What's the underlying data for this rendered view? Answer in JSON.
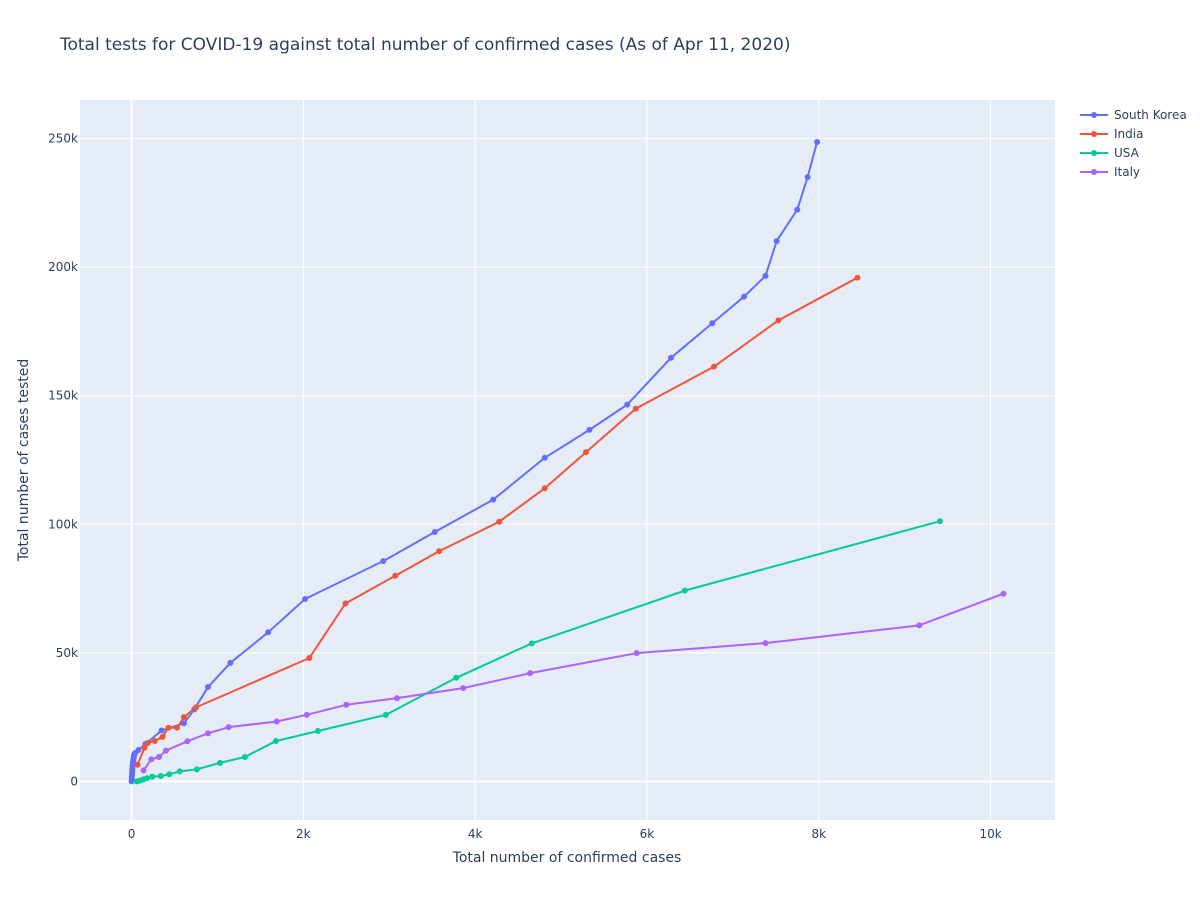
{
  "chart_data": {
    "type": "line",
    "title": "Total tests for COVID-19 against total number of confirmed cases (As of Apr 11, 2020)",
    "xlabel": "Total number of confirmed cases",
    "ylabel": "Total number of cases tested",
    "xlim": [
      -600,
      10750
    ],
    "ylim": [
      -15000,
      265000
    ],
    "x_ticks": [
      0,
      2000,
      4000,
      6000,
      8000,
      10000
    ],
    "x_tick_labels": [
      "0",
      "2k",
      "4k",
      "6k",
      "8k",
      "10k"
    ],
    "y_ticks": [
      0,
      50000,
      100000,
      150000,
      200000,
      250000
    ],
    "y_tick_labels": [
      "0",
      "50k",
      "100k",
      "150k",
      "200k",
      "250k"
    ],
    "grid": true,
    "legend_position": "top-right, outside plot",
    "background_color": "#e5ecf6",
    "series": [
      {
        "name": "South Korea",
        "color": "#636efa",
        "x": [
          0,
          2,
          4,
          6,
          8,
          10,
          12,
          14,
          16,
          18,
          20,
          22,
          24,
          26,
          28,
          30,
          32,
          34,
          40,
          80,
          160,
          350,
          610,
          730,
          890,
          1150,
          1590,
          2020,
          2930,
          3530,
          4210,
          4810,
          5330,
          5770,
          6280,
          6760,
          7130,
          7380,
          7510,
          7750,
          7870,
          7980
        ],
        "y": [
          0,
          1000,
          2000,
          3000,
          4000,
          5000,
          6000,
          6500,
          7000,
          7500,
          8000,
          8500,
          9000,
          9500,
          10000,
          10200,
          10500,
          10700,
          11000,
          12200,
          14500,
          19800,
          22600,
          28000,
          36700,
          46100,
          57990,
          70940,
          85690,
          96980,
          109590,
          125850,
          136710,
          146540,
          164740,
          178190,
          188520,
          196620,
          210140,
          222390,
          234990,
          248650
        ]
      },
      {
        "name": "India",
        "color": "#ef553b",
        "x": [
          70,
          150,
          190,
          270,
          360,
          430,
          530,
          610,
          750,
          2070,
          2490,
          3070,
          3580,
          4280,
          4810,
          5290,
          5870,
          6780,
          7530,
          8450
        ],
        "y": [
          6500,
          13100,
          15000,
          15700,
          17300,
          20900,
          20900,
          25000,
          28800,
          48000,
          69200,
          80000,
          89500,
          101000,
          114000,
          128000,
          145000,
          161300,
          179300,
          195900
        ]
      },
      {
        "name": "USA",
        "color": "#00cc96",
        "x": [
          60,
          100,
          140,
          180,
          240,
          340,
          440,
          560,
          760,
          1030,
          1320,
          1680,
          2170,
          2960,
          3780,
          4660,
          6440,
          9410
        ],
        "y": [
          0,
          300,
          800,
          1300,
          1800,
          2100,
          2800,
          3900,
          4700,
          7200,
          9500,
          15700,
          19600,
          25900,
          40300,
          53700,
          74200,
          101200
        ]
      },
      {
        "name": "Italy",
        "color": "#ab63fa",
        "x": [
          140,
          230,
          320,
          400,
          650,
          890,
          1130,
          1690,
          2040,
          2500,
          3090,
          3860,
          4640,
          5880,
          7380,
          9170,
          10150
        ],
        "y": [
          4300,
          8600,
          9500,
          12000,
          15600,
          18700,
          21100,
          23300,
          25900,
          29800,
          32400,
          36300,
          42100,
          49900,
          53800,
          60700,
          73000
        ]
      }
    ]
  }
}
